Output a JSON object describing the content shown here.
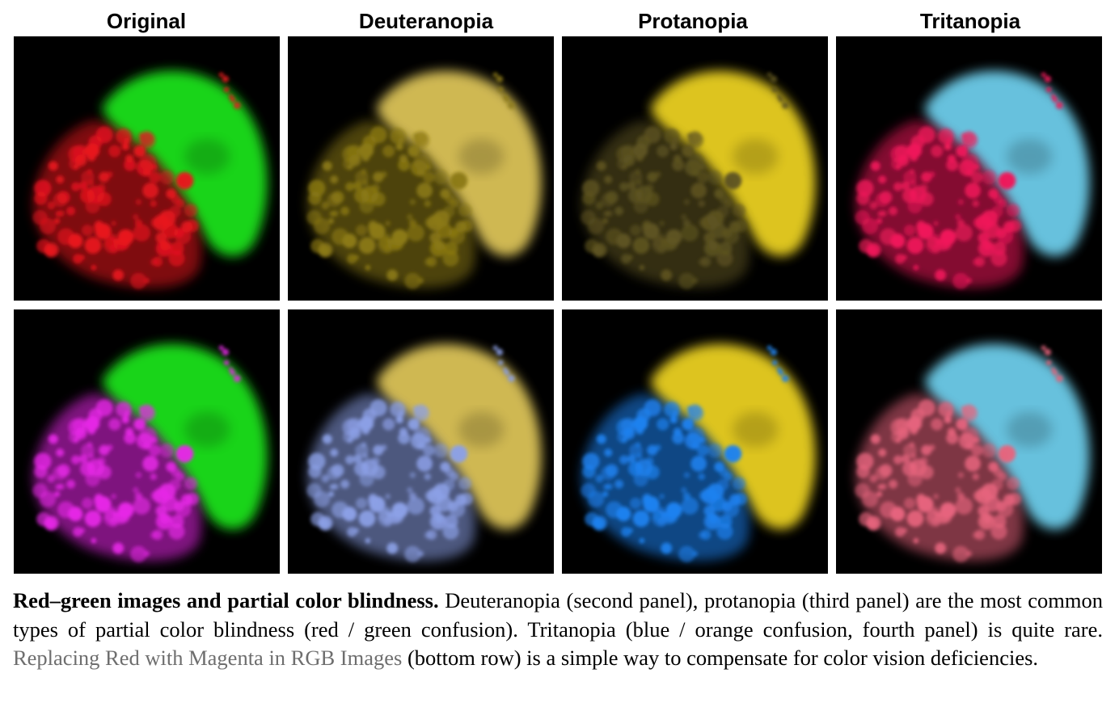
{
  "columns": [
    {
      "title": "Original"
    },
    {
      "title": "Deuteranopia"
    },
    {
      "title": "Protanopia"
    },
    {
      "title": "Tritanopia"
    }
  ],
  "panels": [
    {
      "row": "top",
      "column": "Original",
      "left_color": "#e8141e",
      "right_color": "#1ee61e"
    },
    {
      "row": "top",
      "column": "Deuteranopia",
      "left_color": "#8c7a14",
      "right_color": "#e1c85a"
    },
    {
      "row": "top",
      "column": "Protanopia",
      "left_color": "#5e5420",
      "right_color": "#f0d523"
    },
    {
      "row": "top",
      "column": "Tritanopia",
      "left_color": "#f0195a",
      "right_color": "#6fd2f0"
    },
    {
      "row": "bottom",
      "column": "Original",
      "left_color": "#e628e6",
      "right_color": "#1ee61e"
    },
    {
      "row": "bottom",
      "column": "Deuteranopia",
      "left_color": "#8ca0e6",
      "right_color": "#e1c85a"
    },
    {
      "row": "bottom",
      "column": "Protanopia",
      "left_color": "#1e82f0",
      "right_color": "#f0d523"
    },
    {
      "row": "bottom",
      "column": "Tritanopia",
      "left_color": "#e6647d",
      "right_color": "#6fd2f0"
    }
  ],
  "caption": {
    "title": "Red–green images and partial color blindness.",
    "text": " Deuteranopia (second panel), protanopia (third panel) are the most common types of partial color blindness (red / green confusion).  Tritanopia (blue / orange confusion, fourth panel) is quite rare. ",
    "link": "Replacing Red with Magenta in RGB Images",
    "text_end": " (bottom row) is a simple way to compensate for color vision deficiencies."
  }
}
